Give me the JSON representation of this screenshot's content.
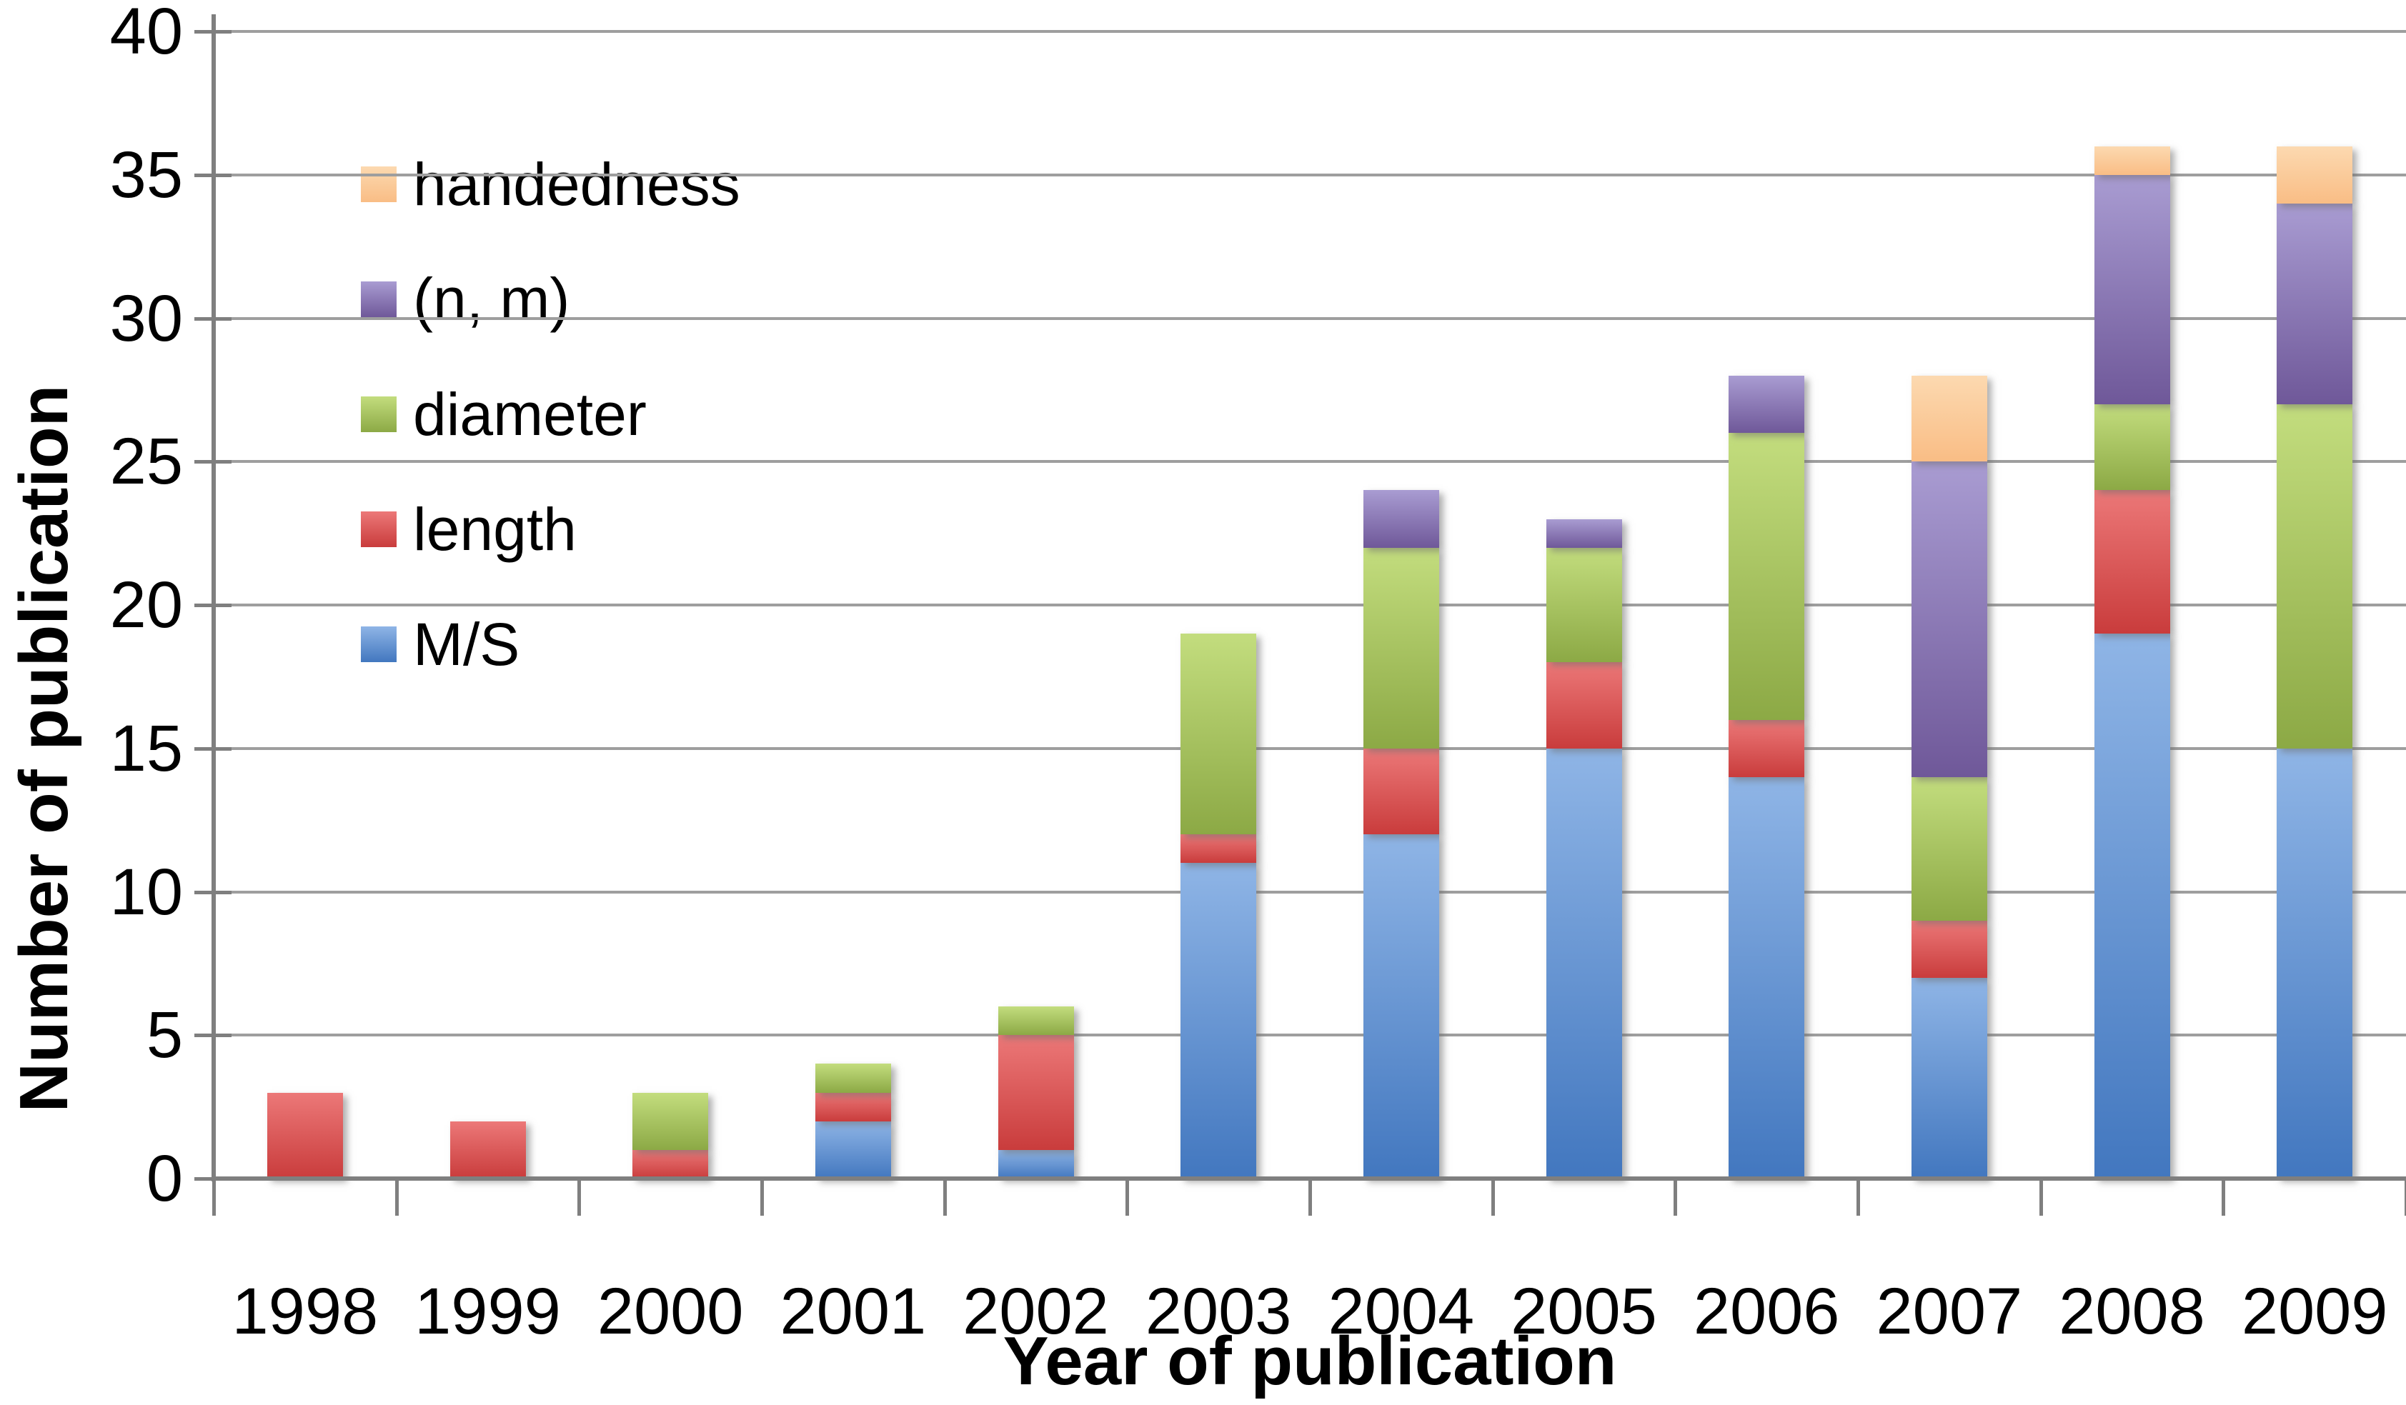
{
  "chart_data": {
    "type": "bar",
    "stacked": true,
    "title": "",
    "xlabel": "Year of publication",
    "ylabel": "Number of publication",
    "categories": [
      "1998",
      "1999",
      "2000",
      "2001",
      "2002",
      "2003",
      "2004",
      "2005",
      "2006",
      "2007",
      "2008",
      "2009"
    ],
    "series": [
      {
        "name": "M/S",
        "color_top": "#8FB5E6",
        "color_bottom": "#4277BF",
        "values": [
          0,
          0,
          0,
          2,
          1,
          11,
          12,
          15,
          14,
          7,
          19,
          15
        ]
      },
      {
        "name": "length",
        "color_top": "#EC7878",
        "color_bottom": "#C93C3C",
        "values": [
          3,
          2,
          1,
          1,
          4,
          1,
          3,
          3,
          2,
          2,
          5,
          0
        ]
      },
      {
        "name": "diameter",
        "color_top": "#C3DD7E",
        "color_bottom": "#8CA945",
        "values": [
          0,
          0,
          2,
          1,
          1,
          7,
          7,
          4,
          10,
          5,
          3,
          12
        ]
      },
      {
        "name": "(n, m)",
        "color_top": "#A99CD2",
        "color_bottom": "#6F5899",
        "values": [
          0,
          0,
          0,
          0,
          0,
          0,
          2,
          1,
          2,
          11,
          8,
          7
        ]
      },
      {
        "name": "handedness",
        "color_top": "#FCD9B0",
        "color_bottom": "#F9BD85",
        "values": [
          0,
          0,
          0,
          0,
          0,
          0,
          0,
          0,
          0,
          3,
          1,
          2
        ]
      }
    ],
    "totals": [
      3,
      2,
      3,
      4,
      6,
      19,
      24,
      23,
      28,
      28,
      36,
      36
    ],
    "legend_order_top_to_bottom": [
      "handedness",
      "(n, m)",
      "diameter",
      "length",
      "M/S"
    ],
    "legend_position": "upper-left-inside",
    "ylim": [
      0,
      40
    ],
    "ytick_step": 5,
    "ytick_labels": [
      "0",
      "5",
      "10",
      "15",
      "20",
      "25",
      "30",
      "35",
      "40"
    ],
    "grid": true,
    "grid_color": "#9e9e9e",
    "axis_color": "#7f7f7f",
    "text_color": "#000000",
    "background_color": "#ffffff"
  }
}
